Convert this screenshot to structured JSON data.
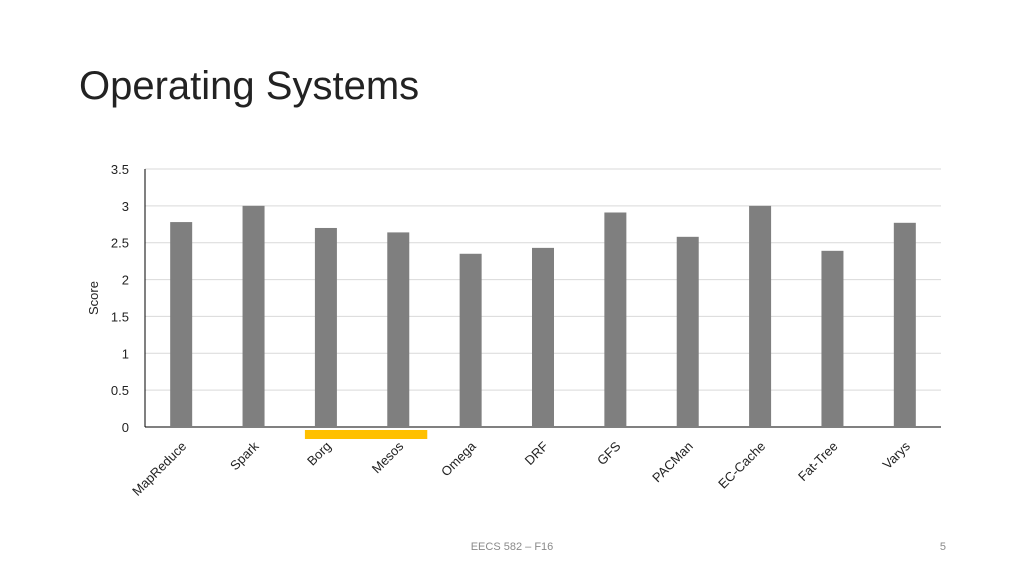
{
  "slide": {
    "title": "Operating Systems",
    "footer": "EECS 582 – F16",
    "page_number": "5"
  },
  "colors": {
    "bar": "#7f7f7f",
    "highlight": "#ffc000",
    "gridline": "#d9d9d9",
    "axis": "#000000"
  },
  "chart_data": {
    "type": "bar",
    "categories": [
      "MapReduce",
      "Spark",
      "Borg",
      "Mesos",
      "Omega",
      "DRF",
      "GFS",
      "PACMan",
      "EC-Cache",
      "Fat-Tree",
      "Varys"
    ],
    "values": [
      2.78,
      3.0,
      2.7,
      2.64,
      2.35,
      2.43,
      2.91,
      2.58,
      3.0,
      2.39,
      2.77
    ],
    "ylabel": "Score",
    "ylim": [
      0,
      3.5
    ],
    "yticks": [
      "0",
      "0.5",
      "1",
      "1.5",
      "2",
      "2.5",
      "3",
      "3.5"
    ],
    "grid": true,
    "highlighted_categories": [
      "Borg",
      "Mesos"
    ]
  }
}
